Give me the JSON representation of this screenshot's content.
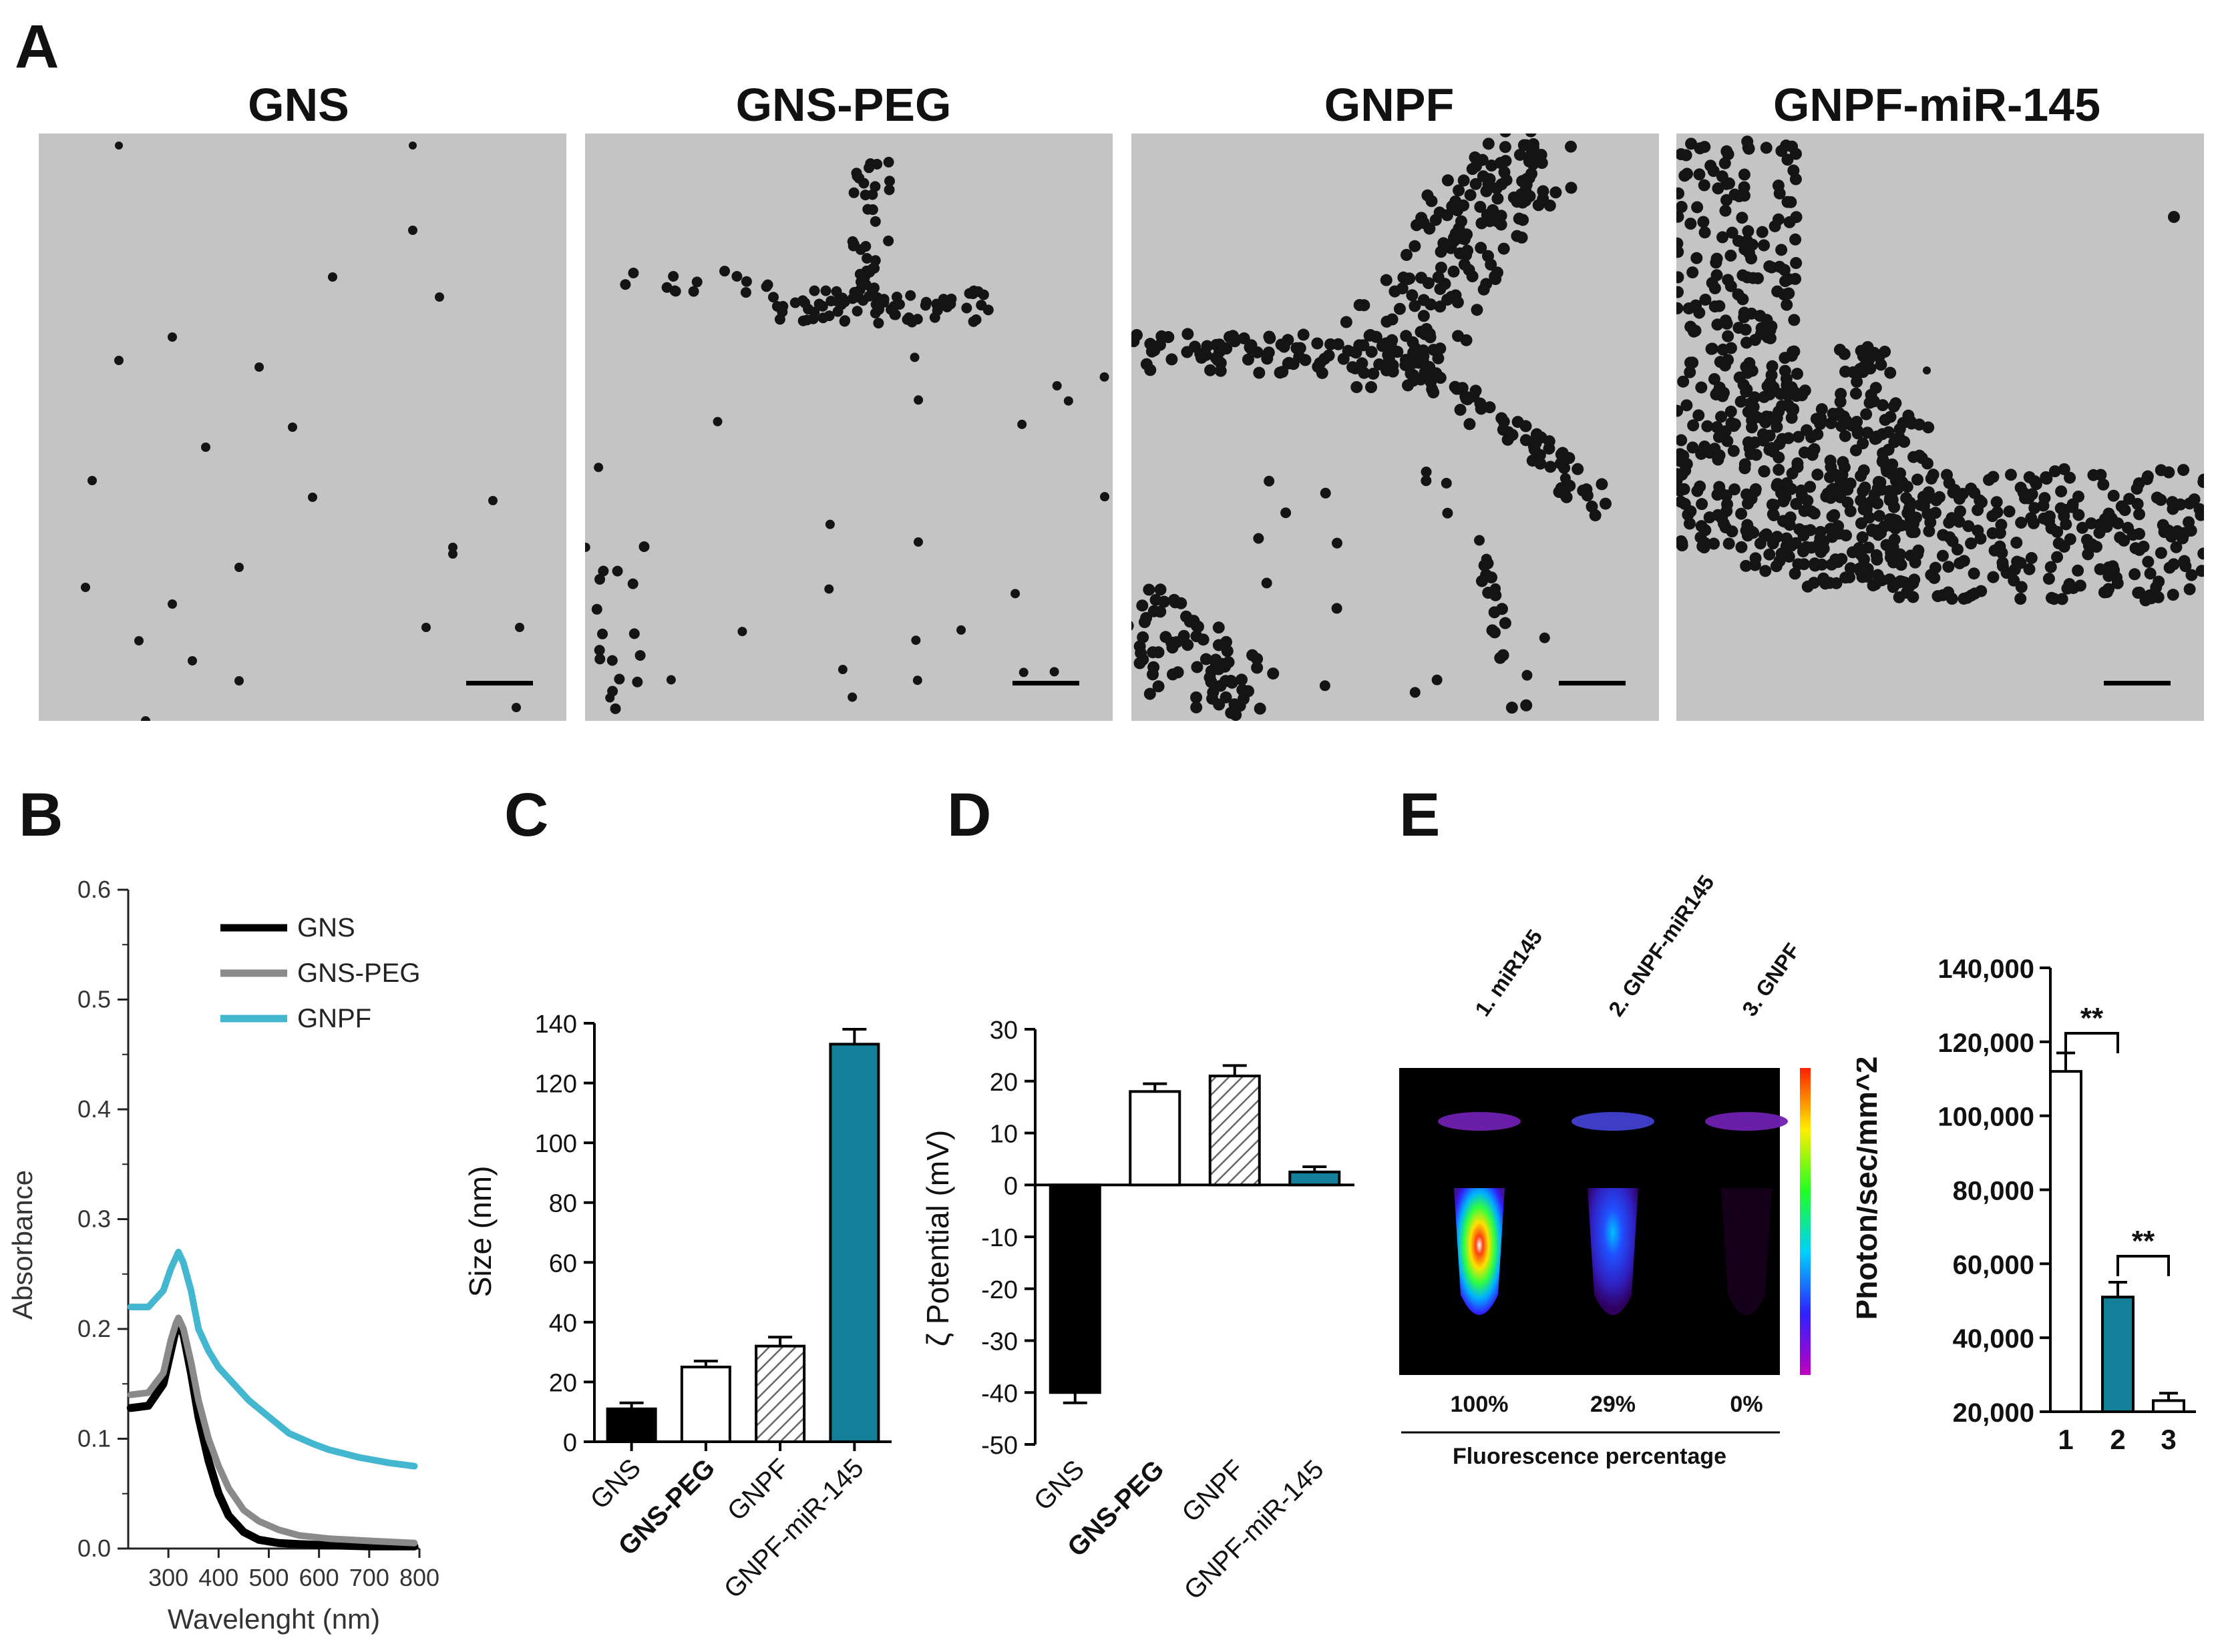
{
  "panels": {
    "A": "A",
    "B": "B",
    "C": "C",
    "D": "D",
    "E": "E"
  },
  "tem": {
    "titles": [
      "GNS",
      "GNS-PEG",
      "GNPF",
      "GNPF-miR-145"
    ],
    "colors": {
      "background": "#c4c4c4",
      "particle": "#141414"
    }
  },
  "chart_data": [
    {
      "id": "B",
      "type": "line",
      "xlabel": "Wavelenght (nm)",
      "ylabel": "Absorbance",
      "xlim": [
        220,
        800
      ],
      "ylim": [
        0,
        0.6
      ],
      "x_ticks": [
        "300",
        "400",
        "500",
        "600",
        "700",
        "800"
      ],
      "y_ticks": [
        "0.0",
        "0.1",
        "0.2",
        "0.3",
        "0.4",
        "0.5",
        "0.6"
      ],
      "legend_position": "top-right",
      "series": [
        {
          "name": "GNS",
          "color": "#000000",
          "x": [
            225,
            260,
            290,
            305,
            315,
            320,
            330,
            345,
            360,
            380,
            400,
            420,
            450,
            480,
            520,
            560,
            620,
            700,
            790
          ],
          "y": [
            0.128,
            0.13,
            0.15,
            0.18,
            0.2,
            0.205,
            0.195,
            0.16,
            0.12,
            0.08,
            0.05,
            0.03,
            0.015,
            0.008,
            0.005,
            0.004,
            0.003,
            0.002,
            0.002
          ]
        },
        {
          "name": "GNS-PEG",
          "color": "#8a8a8a",
          "x": [
            225,
            260,
            290,
            305,
            315,
            320,
            330,
            345,
            360,
            380,
            400,
            420,
            450,
            480,
            520,
            560,
            620,
            700,
            790
          ],
          "y": [
            0.14,
            0.142,
            0.16,
            0.19,
            0.205,
            0.21,
            0.2,
            0.17,
            0.135,
            0.1,
            0.075,
            0.055,
            0.035,
            0.025,
            0.017,
            0.012,
            0.009,
            0.007,
            0.005
          ]
        },
        {
          "name": "GNPF",
          "color": "#43b7cf",
          "x": [
            225,
            260,
            290,
            305,
            315,
            320,
            330,
            345,
            360,
            380,
            400,
            430,
            460,
            500,
            540,
            575,
            590,
            620,
            680,
            740,
            790
          ],
          "y": [
            0.22,
            0.22,
            0.235,
            0.255,
            0.265,
            0.27,
            0.26,
            0.235,
            0.2,
            0.18,
            0.165,
            0.15,
            0.135,
            0.12,
            0.105,
            0.098,
            0.095,
            0.09,
            0.083,
            0.078,
            0.075
          ]
        }
      ]
    },
    {
      "id": "C",
      "type": "bar",
      "ylabel": "Size (nm)",
      "ylim": [
        0,
        140
      ],
      "y_ticks": [
        "0",
        "20",
        "40",
        "60",
        "80",
        "100",
        "120",
        "140"
      ],
      "categories": [
        "GNS",
        "GNS-PEG",
        "GNPF",
        "GNPF-miR-145"
      ],
      "values": [
        11,
        25,
        32,
        133
      ],
      "errors": [
        2,
        2,
        3,
        5
      ],
      "fills": [
        "#000000",
        "#ffffff",
        "hatch",
        "#137f98"
      ]
    },
    {
      "id": "D",
      "type": "bar",
      "ylabel": "ζ Potential  (mV)",
      "ylim": [
        -50,
        30
      ],
      "y_ticks": [
        "-50",
        "-40",
        "-30",
        "-20",
        "-10",
        "0",
        "10",
        "20",
        "30"
      ],
      "categories": [
        "GNS",
        "GNS-PEG",
        "GNPF",
        "GNPF-miR-145"
      ],
      "values": [
        -40,
        18,
        21,
        2.5
      ],
      "errors": [
        2,
        1.5,
        2,
        1
      ],
      "fills": [
        "#000000",
        "#ffffff",
        "hatch",
        "#137f98"
      ]
    },
    {
      "id": "E-right",
      "type": "bar",
      "ylabel": "Photon/sec/mm^2",
      "ylim": [
        20000,
        140000
      ],
      "y_ticks": [
        "20,000",
        "40,000",
        "60,000",
        "80,000",
        "100,000",
        "120,000",
        "140,000"
      ],
      "categories": [
        "1",
        "2",
        "3"
      ],
      "values": [
        112000,
        51000,
        23000
      ],
      "errors": [
        5000,
        4000,
        2000
      ],
      "fills": [
        "#ffffff",
        "#137f98",
        "#ffffff"
      ],
      "annotations": [
        "**",
        "**"
      ]
    }
  ],
  "fluorescence": {
    "tube_labels": [
      "1. miR145",
      "2. GNPF-miR145",
      "3. GNPF"
    ],
    "percentages": [
      "100%",
      "29%",
      "0%"
    ],
    "caption": "Fluorescence percentage",
    "intensity": [
      1.0,
      0.29,
      0.0
    ]
  }
}
